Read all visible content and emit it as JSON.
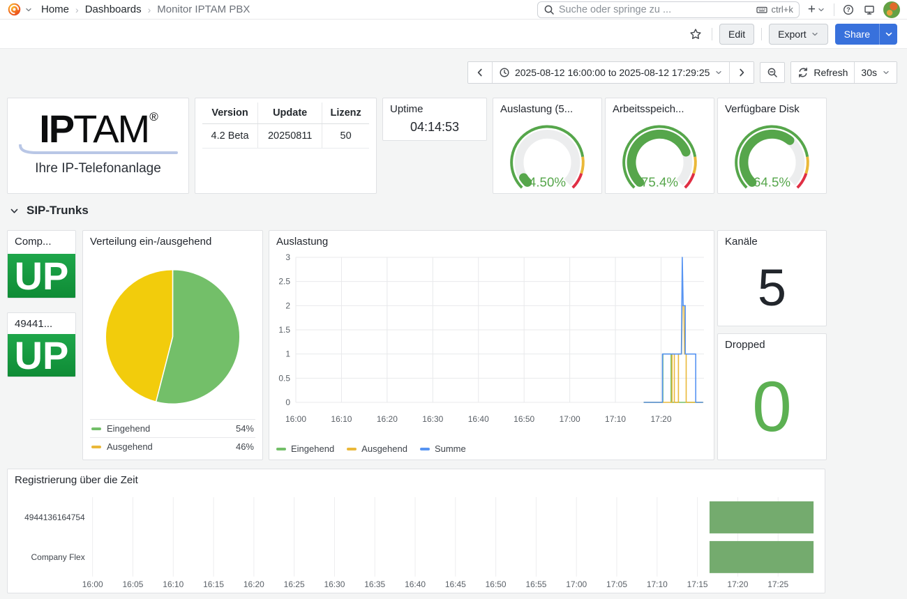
{
  "nav": {
    "breadcrumb": [
      {
        "label": "Home"
      },
      {
        "label": "Dashboards"
      },
      {
        "label": "Monitor IPTAM PBX"
      }
    ],
    "search": {
      "placeholder": "Suche oder springe zu ...",
      "shortcut": "ctrl+k"
    }
  },
  "toolbar": {
    "edit_label": "Edit",
    "export_label": "Export",
    "share_label": "Share"
  },
  "timebar": {
    "range_label": "2025-08-12 16:00:00 to 2025-08-12 17:29:25",
    "refresh_label": "Refresh",
    "interval_label": "30s"
  },
  "section": {
    "title": "SIP-Trunks"
  },
  "panels": {
    "logo": {
      "brand_bold": "IP",
      "brand_rest": "TAM",
      "registered_mark": "®",
      "tagline": "Ihre IP-Telefonanlage"
    },
    "version_table": {
      "headers": [
        "Version",
        "Update",
        "Lizenz"
      ],
      "row": [
        "4.2 Beta",
        "20250811",
        "50"
      ]
    },
    "uptime": {
      "title": "Uptime",
      "value": "04:14:53"
    },
    "gauge_cpu": {
      "title": "Auslastung (5..."
    },
    "gauge_mem": {
      "title": "Arbeitsspeich..."
    },
    "gauge_disk": {
      "title": "Verfügbare Disk"
    },
    "trunk_company": {
      "title": "Comp...",
      "status": "UP"
    },
    "trunk_number": {
      "title": "49441...",
      "status": "UP"
    },
    "pie": {
      "title": "Verteilung ein-/ausgehend",
      "legend": [
        {
          "label": "Eingehend",
          "value": "54%"
        },
        {
          "label": "Ausgehend",
          "value": "46%"
        }
      ]
    },
    "timeseries": {
      "title": "Auslastung",
      "legend": [
        "Eingehend",
        "Ausgehend",
        "Summe"
      ]
    },
    "channels": {
      "title": "Kanäle",
      "value": "5"
    },
    "dropped": {
      "title": "Dropped",
      "value": "0"
    },
    "timeline": {
      "title": "Registrierung über die Zeit",
      "rows": [
        "4944136164754",
        "Company Flex"
      ]
    }
  },
  "colors": {
    "green": "#56A64B",
    "light_green": "#73BF69",
    "yellow": "#EAB839",
    "pie_yellow": "#F2CC0C",
    "blue": "#5794F2",
    "red": "#E02F44",
    "share_blue": "#3871DC",
    "timeline_green": "#74AB6E",
    "up_green": "#0F8C36"
  },
  "chart_data": [
    {
      "id": "gauge-auslastung",
      "type": "gauge",
      "title": "Auslastung (5...",
      "value": 4.5,
      "min": 0,
      "max": 100,
      "display": "4.50%",
      "color": "#56A64B",
      "thresholds": [
        {
          "from": 0,
          "to": 80,
          "color": "#56A64B"
        },
        {
          "from": 80,
          "to": 90,
          "color": "#EAB839"
        },
        {
          "from": 90,
          "to": 100,
          "color": "#E02F44"
        }
      ]
    },
    {
      "id": "gauge-arbeitsspeicher",
      "type": "gauge",
      "title": "Arbeitsspeich...",
      "value": 75.4,
      "min": 0,
      "max": 100,
      "display": "75.4%",
      "color": "#56A64B",
      "thresholds": [
        {
          "from": 0,
          "to": 80,
          "color": "#56A64B"
        },
        {
          "from": 80,
          "to": 90,
          "color": "#EAB839"
        },
        {
          "from": 90,
          "to": 100,
          "color": "#E02F44"
        }
      ]
    },
    {
      "id": "gauge-disk",
      "type": "gauge",
      "title": "Verfügbare Disk",
      "value": 64.5,
      "min": 0,
      "max": 100,
      "display": "64.5%",
      "color": "#56A64B",
      "thresholds": [
        {
          "from": 0,
          "to": 80,
          "color": "#56A64B"
        },
        {
          "from": 80,
          "to": 90,
          "color": "#EAB839"
        },
        {
          "from": 90,
          "to": 100,
          "color": "#E02F44"
        }
      ]
    },
    {
      "id": "pie-verteilung",
      "type": "pie",
      "title": "Verteilung ein-/ausgehend",
      "slices": [
        {
          "label": "Eingehend",
          "value": 54,
          "color": "#73BF69"
        },
        {
          "label": "Ausgehend",
          "value": 46,
          "color": "#F2CC0C"
        }
      ]
    },
    {
      "id": "line-auslastung",
      "type": "line",
      "title": "Auslastung",
      "ylim": [
        0,
        3
      ],
      "yticks": [
        0,
        0.5,
        1,
        1.5,
        2,
        2.5,
        3
      ],
      "xlim": [
        0,
        89.4
      ],
      "x_origin": "16:00",
      "x_unit": "minutes after 16:00",
      "xticks": [
        {
          "m": 0,
          "label": "16:00"
        },
        {
          "m": 10,
          "label": "16:10"
        },
        {
          "m": 20,
          "label": "16:20"
        },
        {
          "m": 30,
          "label": "16:30"
        },
        {
          "m": 40,
          "label": "16:40"
        },
        {
          "m": 50,
          "label": "16:50"
        },
        {
          "m": 60,
          "label": "17:00"
        },
        {
          "m": 70,
          "label": "17:10"
        },
        {
          "m": 80,
          "label": "17:20"
        }
      ],
      "series": [
        {
          "name": "Eingehend",
          "color": "#73BF69",
          "points": [
            [
              76.2,
              0
            ],
            [
              80.4,
              0
            ],
            [
              80.4,
              1
            ],
            [
              82.2,
              1
            ],
            [
              82.2,
              0
            ],
            [
              89.2,
              0
            ]
          ]
        },
        {
          "name": "Ausgehend",
          "color": "#EAB839",
          "points": [
            [
              76.2,
              0
            ],
            [
              82.4,
              0
            ],
            [
              82.4,
              1
            ],
            [
              82.9,
              1
            ],
            [
              82.9,
              0
            ],
            [
              83.8,
              0
            ],
            [
              83.8,
              1
            ],
            [
              84.5,
              1
            ],
            [
              84.65,
              2
            ],
            [
              85.0,
              2
            ],
            [
              85.15,
              1
            ],
            [
              85.5,
              1
            ],
            [
              85.5,
              0
            ],
            [
              89.2,
              0
            ]
          ]
        },
        {
          "name": "Summe",
          "color": "#5794F2",
          "points": [
            [
              76.2,
              0
            ],
            [
              80.3,
              0
            ],
            [
              80.3,
              1
            ],
            [
              84.45,
              1
            ],
            [
              84.65,
              3
            ],
            [
              84.85,
              2
            ],
            [
              85.3,
              2
            ],
            [
              85.3,
              1
            ],
            [
              87.6,
              1
            ],
            [
              87.6,
              0
            ],
            [
              89.2,
              0
            ]
          ]
        }
      ],
      "legend_position": "bottom-left",
      "grid": true
    },
    {
      "id": "timeline-registrierung",
      "type": "state-timeline",
      "title": "Registrierung über die Zeit",
      "xlim": [
        0,
        89.4
      ],
      "x_origin": "16:00",
      "xticks": [
        {
          "m": 0,
          "label": "16:00"
        },
        {
          "m": 5,
          "label": "16:05"
        },
        {
          "m": 10,
          "label": "16:10"
        },
        {
          "m": 15,
          "label": "16:15"
        },
        {
          "m": 20,
          "label": "16:20"
        },
        {
          "m": 25,
          "label": "16:25"
        },
        {
          "m": 30,
          "label": "16:30"
        },
        {
          "m": 35,
          "label": "16:35"
        },
        {
          "m": 40,
          "label": "16:40"
        },
        {
          "m": 45,
          "label": "16:45"
        },
        {
          "m": 50,
          "label": "16:50"
        },
        {
          "m": 55,
          "label": "16:55"
        },
        {
          "m": 60,
          "label": "17:00"
        },
        {
          "m": 65,
          "label": "17:05"
        },
        {
          "m": 70,
          "label": "17:10"
        },
        {
          "m": 75,
          "label": "17:15"
        },
        {
          "m": 80,
          "label": "17:20"
        },
        {
          "m": 85,
          "label": "17:25"
        }
      ],
      "rows": [
        {
          "label": "4944136164754",
          "bars": [
            {
              "start": 76.5,
              "end": 89.4,
              "color": "#74AB6E"
            }
          ]
        },
        {
          "label": "Company Flex",
          "bars": [
            {
              "start": 76.5,
              "end": 89.4,
              "color": "#74AB6E"
            }
          ]
        }
      ]
    }
  ]
}
